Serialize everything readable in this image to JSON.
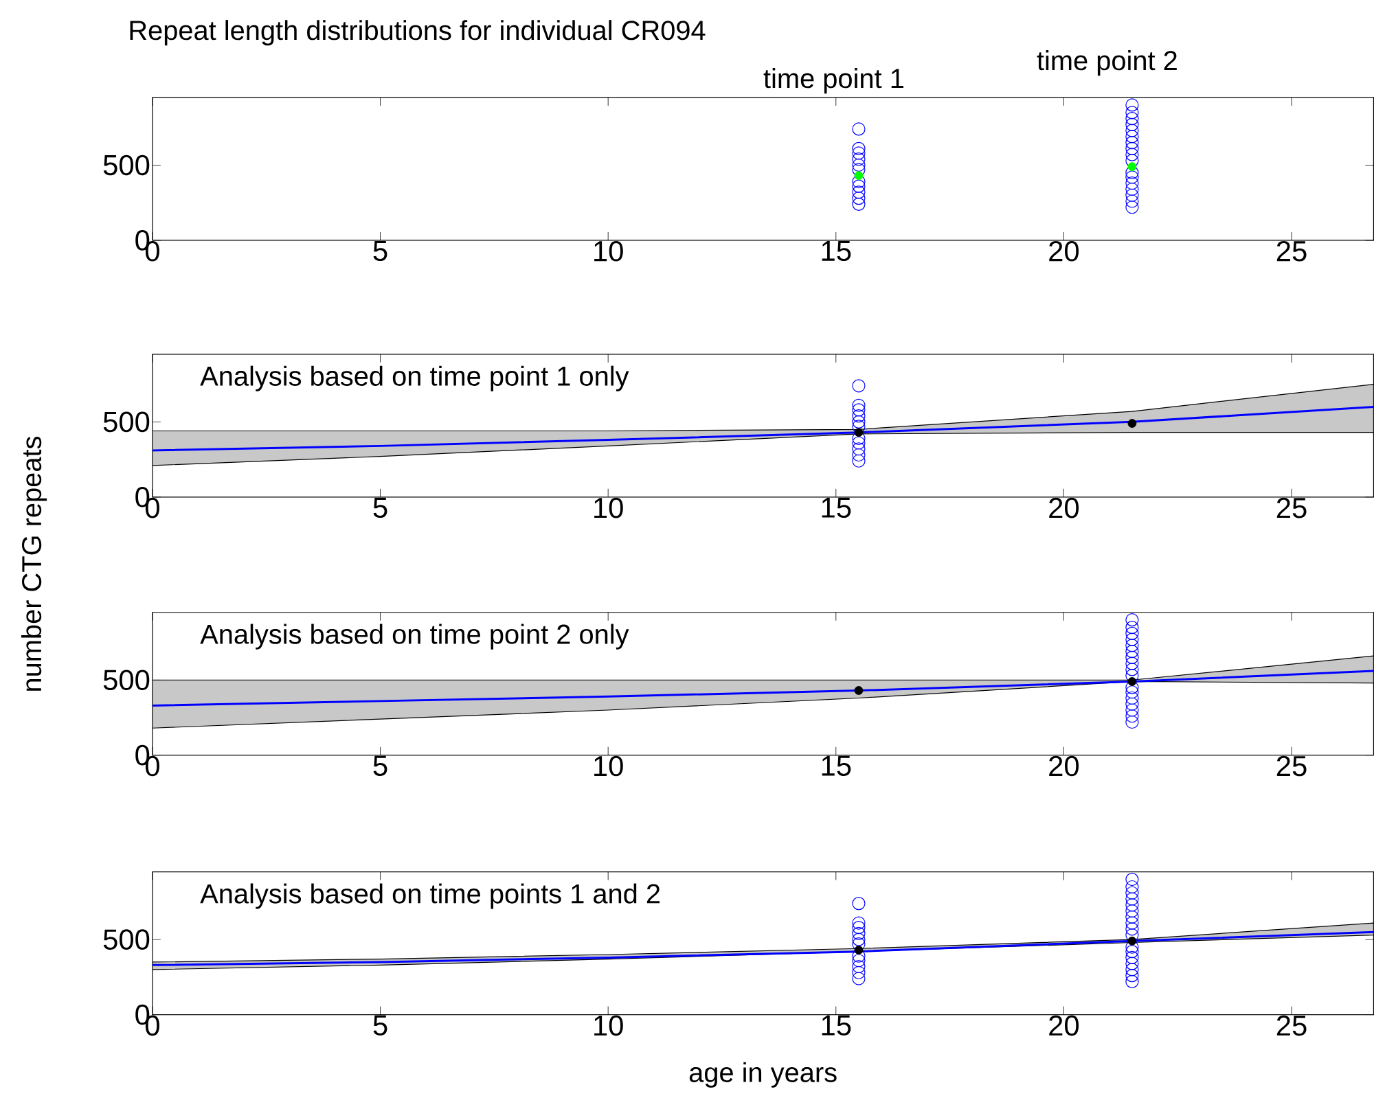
{
  "chart_data": [
    {
      "type": "scatter",
      "title": "Repeat length distributions for individual CR094",
      "annotations": [
        "time point 1",
        "time point 2"
      ],
      "xlim": [
        0,
        26.8
      ],
      "ylim": [
        0,
        950
      ],
      "xticks": [
        0,
        5,
        10,
        15,
        20,
        25
      ],
      "yticks": [
        0,
        500
      ],
      "marker": "circle",
      "series": [
        {
          "color": "#0000ff",
          "x": [
            15.5,
            15.5,
            15.5,
            15.5,
            15.5,
            15.5,
            15.5,
            15.5,
            15.5,
            15.5,
            15.5
          ],
          "values": [
            240,
            280,
            320,
            360,
            390,
            470,
            500,
            540,
            580,
            610,
            740
          ]
        },
        {
          "color": "#0000ff",
          "x": [
            21.5,
            21.5,
            21.5,
            21.5,
            21.5,
            21.5,
            21.5,
            21.5,
            21.5,
            21.5,
            21.5,
            21.5,
            21.5,
            21.5,
            21.5,
            21.5,
            21.5
          ],
          "values": [
            220,
            260,
            300,
            340,
            380,
            420,
            450,
            530,
            570,
            610,
            650,
            690,
            730,
            770,
            810,
            850,
            900
          ]
        },
        {
          "color": "#00ff00",
          "marker": "circle",
          "x": [
            15.5,
            21.5
          ],
          "values": [
            430,
            490
          ]
        }
      ]
    },
    {
      "type": "scatter",
      "title": "Analysis based on time point 1 only",
      "ylabel": "number CTG repeats",
      "xlim": [
        0,
        26.8
      ],
      "ylim": [
        0,
        950
      ],
      "xticks": [
        0,
        5,
        10,
        15,
        20,
        25
      ],
      "yticks": [
        0,
        500
      ],
      "marker": "circle",
      "series": [
        {
          "type": "line",
          "marker": "none",
          "color": "#0000ff",
          "x": [
            0,
            5,
            10,
            15.5,
            21.5,
            26.8
          ],
          "values": [
            310,
            340,
            380,
            430,
            500,
            600
          ],
          "lower": [
            210,
            270,
            340,
            420,
            430,
            430
          ],
          "upper": [
            440,
            440,
            440,
            450,
            570,
            750
          ]
        },
        {
          "color": "#0000ff",
          "x": [
            15.5,
            15.5,
            15.5,
            15.5,
            15.5,
            15.5,
            15.5,
            15.5,
            15.5,
            15.5,
            15.5
          ],
          "values": [
            240,
            280,
            320,
            360,
            390,
            470,
            500,
            540,
            580,
            610,
            740
          ]
        },
        {
          "color": "#000000",
          "marker": "circle",
          "x": [
            15.5,
            21.5
          ],
          "values": [
            430,
            490
          ]
        }
      ]
    },
    {
      "type": "scatter",
      "title": "Analysis based on time point 2 only",
      "xlim": [
        0,
        26.8
      ],
      "ylim": [
        0,
        950
      ],
      "xticks": [
        0,
        5,
        10,
        15,
        20,
        25
      ],
      "yticks": [
        0,
        500
      ],
      "marker": "circle",
      "series": [
        {
          "type": "line",
          "marker": "none",
          "color": "#0000ff",
          "x": [
            0,
            5,
            10,
            15.5,
            21.5,
            26.8
          ],
          "values": [
            330,
            360,
            390,
            430,
            490,
            560
          ],
          "lower": [
            180,
            240,
            300,
            380,
            490,
            480
          ],
          "upper": [
            500,
            500,
            500,
            500,
            500,
            660
          ]
        },
        {
          "color": "#0000ff",
          "x": [
            21.5,
            21.5,
            21.5,
            21.5,
            21.5,
            21.5,
            21.5,
            21.5,
            21.5,
            21.5,
            21.5,
            21.5,
            21.5,
            21.5,
            21.5,
            21.5,
            21.5
          ],
          "values": [
            220,
            260,
            300,
            340,
            380,
            420,
            450,
            530,
            570,
            610,
            650,
            690,
            730,
            770,
            810,
            850,
            900
          ]
        },
        {
          "color": "#000000",
          "marker": "circle",
          "x": [
            15.5,
            21.5
          ],
          "values": [
            430,
            490
          ]
        }
      ]
    },
    {
      "type": "scatter",
      "title": "Analysis based on time points 1 and 2",
      "xlabel": "age in years",
      "xlim": [
        0,
        26.8
      ],
      "ylim": [
        0,
        950
      ],
      "xticks": [
        0,
        5,
        10,
        15,
        20,
        25
      ],
      "yticks": [
        0,
        500
      ],
      "marker": "circle",
      "series": [
        {
          "type": "line",
          "marker": "none",
          "color": "#0000ff",
          "x": [
            0,
            5,
            10,
            15.5,
            21.5,
            26.8
          ],
          "values": [
            330,
            350,
            380,
            420,
            490,
            550
          ],
          "lower": [
            300,
            330,
            370,
            420,
            480,
            530
          ],
          "upper": [
            350,
            370,
            400,
            440,
            500,
            610
          ]
        },
        {
          "color": "#0000ff",
          "x": [
            15.5,
            15.5,
            15.5,
            15.5,
            15.5,
            15.5,
            15.5,
            15.5,
            15.5,
            15.5,
            15.5
          ],
          "values": [
            240,
            280,
            320,
            360,
            390,
            470,
            500,
            540,
            580,
            610,
            740
          ]
        },
        {
          "color": "#0000ff",
          "x": [
            21.5,
            21.5,
            21.5,
            21.5,
            21.5,
            21.5,
            21.5,
            21.5,
            21.5,
            21.5,
            21.5,
            21.5,
            21.5,
            21.5,
            21.5,
            21.5,
            21.5
          ],
          "values": [
            220,
            260,
            300,
            340,
            380,
            420,
            450,
            530,
            570,
            610,
            650,
            690,
            730,
            770,
            810,
            850,
            900
          ]
        },
        {
          "color": "#000000",
          "marker": "circle",
          "x": [
            15.5,
            21.5
          ],
          "values": [
            430,
            490
          ]
        }
      ]
    }
  ]
}
